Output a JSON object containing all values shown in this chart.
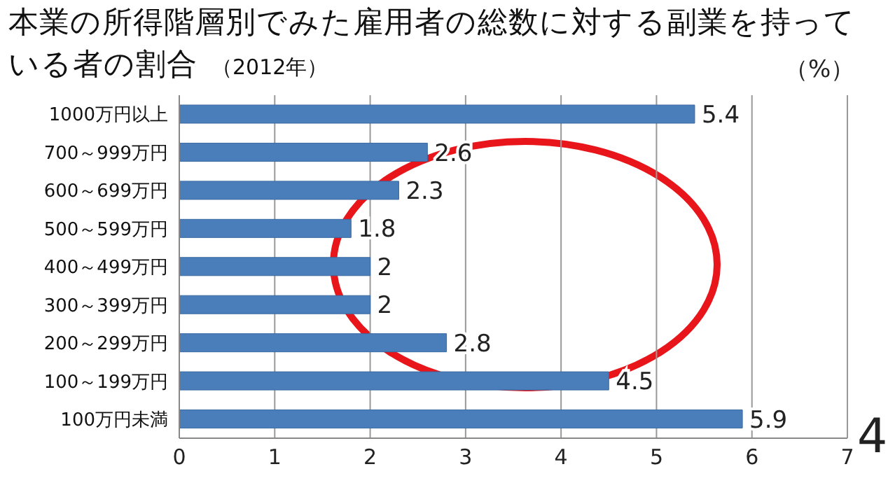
{
  "chart_data": {
    "type": "bar",
    "orientation": "horizontal",
    "title": "本業の所得階層別でみた雇用者の総数に対する副業を持っている者の割合",
    "subtitle": "（2012年）",
    "categories": [
      "1000万円以上",
      "700～999万円",
      "600～699万円",
      "500～599万円",
      "400～499万円",
      "300～399万円",
      "200～299万円",
      "100～199万円",
      "100万円未満"
    ],
    "values": [
      5.4,
      2.6,
      2.3,
      1.8,
      2,
      2,
      2.8,
      4.5,
      5.9
    ],
    "color": "#4a7ebb",
    "data_labels": true,
    "xlim": [
      0,
      7
    ],
    "xticks": [
      0,
      1,
      2,
      3,
      4,
      5,
      6,
      7
    ],
    "grid": "x",
    "annotations": [
      "（%）",
      "4"
    ]
  }
}
